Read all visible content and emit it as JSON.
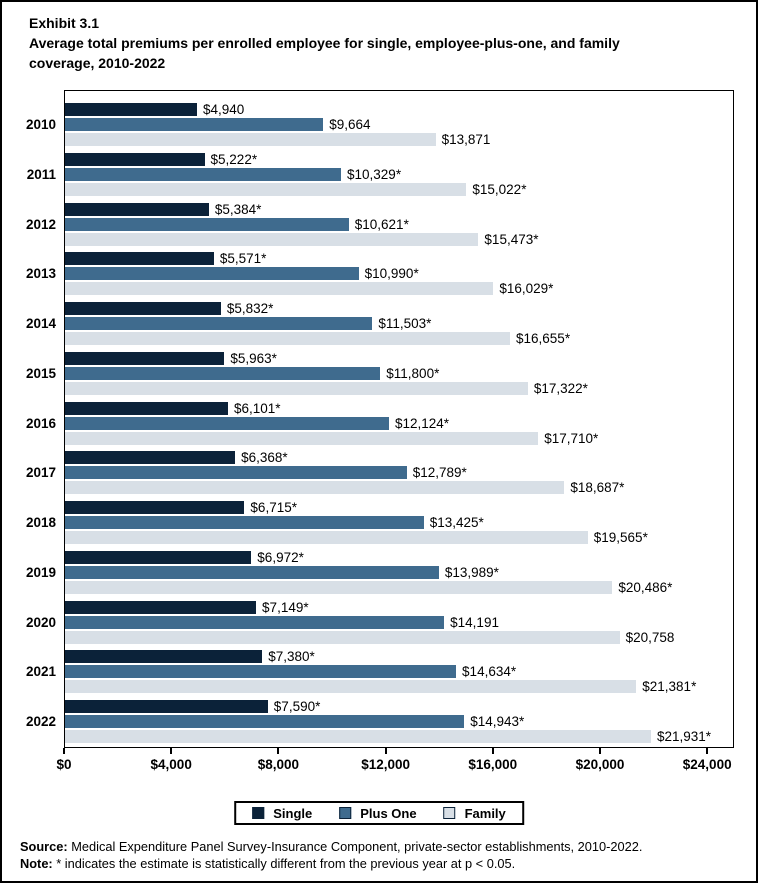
{
  "title": {
    "exhibit": "Exhibit 3.1",
    "subtitle_lines": [
      "Average total premiums per enrolled employee for single, employee-plus-one, and family",
      "coverage, 2010-2022"
    ]
  },
  "colors": {
    "single": "#0b2239",
    "plus_one": "#3f6b8e",
    "family": "#d8dfe6",
    "axis": "#000000"
  },
  "chart_data": {
    "type": "bar",
    "orientation": "horizontal",
    "title": "Average total premiums per enrolled employee for single, employee-plus-one, and family coverage, 2010-2022",
    "categories": [
      "2010",
      "2011",
      "2012",
      "2013",
      "2014",
      "2015",
      "2016",
      "2017",
      "2018",
      "2019",
      "2020",
      "2021",
      "2022"
    ],
    "series": [
      {
        "name": "Single",
        "color": "#0b2239",
        "values": [
          4940,
          5222,
          5384,
          5571,
          5832,
          5963,
          6101,
          6368,
          6715,
          6972,
          7149,
          7380,
          7590
        ],
        "labels": [
          "$4,940",
          "$5,222*",
          "$5,384*",
          "$5,571*",
          "$5,832*",
          "$5,963*",
          "$6,101*",
          "$6,368*",
          "$6,715*",
          "$6,972*",
          "$7,149*",
          "$7,380*",
          "$7,590*"
        ]
      },
      {
        "name": "Plus One",
        "color": "#3f6b8e",
        "values": [
          9664,
          10329,
          10621,
          10990,
          11503,
          11800,
          12124,
          12789,
          13425,
          13989,
          14191,
          14634,
          14943
        ],
        "labels": [
          "$9,664",
          "$10,329*",
          "$10,621*",
          "$10,990*",
          "$11,503*",
          "$11,800*",
          "$12,124*",
          "$12,789*",
          "$13,425*",
          "$13,989*",
          "$14,191",
          "$14,634*",
          "$14,943*"
        ]
      },
      {
        "name": "Family",
        "color": "#d8dfe6",
        "values": [
          13871,
          15022,
          15473,
          16029,
          16655,
          17322,
          17710,
          18687,
          19565,
          20486,
          20758,
          21381,
          21931
        ],
        "labels": [
          "$13,871",
          "$15,022*",
          "$15,473*",
          "$16,029*",
          "$16,655*",
          "$17,322*",
          "$17,710*",
          "$18,687*",
          "$19,565*",
          "$20,486*",
          "$20,758",
          "$21,381*",
          "$21,931*"
        ]
      }
    ],
    "xlim": [
      0,
      25000
    ],
    "x_tick_values": [
      0,
      4000,
      8000,
      12000,
      16000,
      20000,
      24000
    ],
    "x_tick_labels": [
      "$0",
      "$4,000",
      "$8,000",
      "$12,000",
      "$16,000",
      "$20,000",
      "$24,000"
    ],
    "grid": false,
    "legend_position": "bottom"
  },
  "legend": {
    "items": [
      {
        "label": "Single",
        "color": "#0b2239"
      },
      {
        "label": "Plus One",
        "color": "#3f6b8e"
      },
      {
        "label": "Family",
        "color": "#d8dfe6"
      }
    ]
  },
  "footer": {
    "source_label": "Source:",
    "source_text": " Medical Expenditure Panel Survey-Insurance Component, private-sector establishments, 2010-2022.",
    "note_label": "Note:",
    "note_text": " * indicates the estimate is statistically different from the previous year at p < 0.05."
  }
}
